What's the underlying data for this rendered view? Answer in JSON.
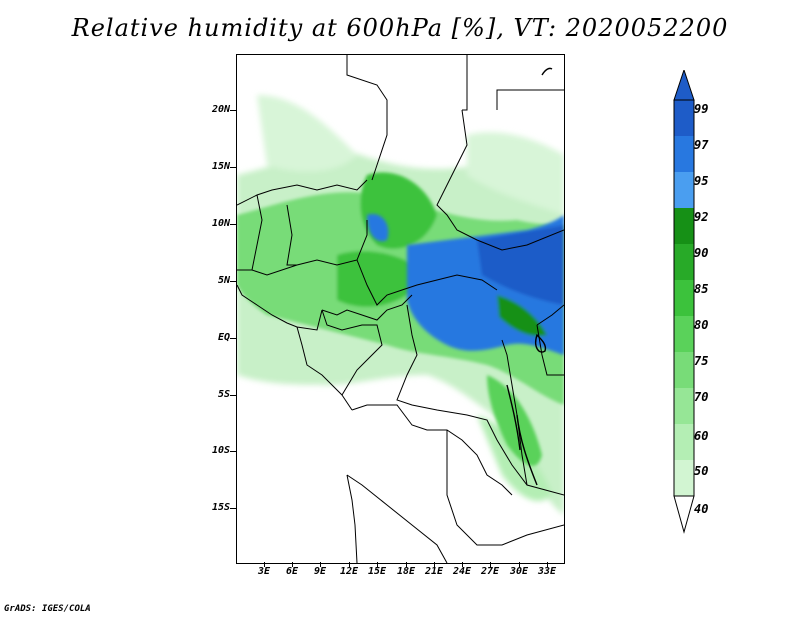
{
  "title": "Relative humidity at 600hPa [%], VT: 2020052200",
  "credit": "GrADS: IGES/COLA",
  "lat_labels": [
    "20N",
    "15N",
    "10N",
    "5N",
    "EQ",
    "5S",
    "10S",
    "15S"
  ],
  "lon_labels": [
    "3E",
    "6E",
    "9E",
    "12E",
    "15E",
    "18E",
    "21E",
    "24E",
    "27E",
    "30E",
    "33E"
  ],
  "colorbar": {
    "levels": [
      "40",
      "50",
      "60",
      "70",
      "75",
      "80",
      "85",
      "90",
      "92",
      "95",
      "97",
      "99"
    ],
    "colors": [
      "#ebfaeb",
      "#d2f5d2",
      "#b4eeb4",
      "#96e696",
      "#78dc78",
      "#5ad25a",
      "#3cc23c",
      "#28aa28",
      "#169016",
      "#4a9ef0",
      "#2878e0",
      "#1e5cc8"
    ]
  },
  "colors": {
    "frame": "#000000",
    "border_lines": "#000000",
    "background": "#ffffff"
  }
}
